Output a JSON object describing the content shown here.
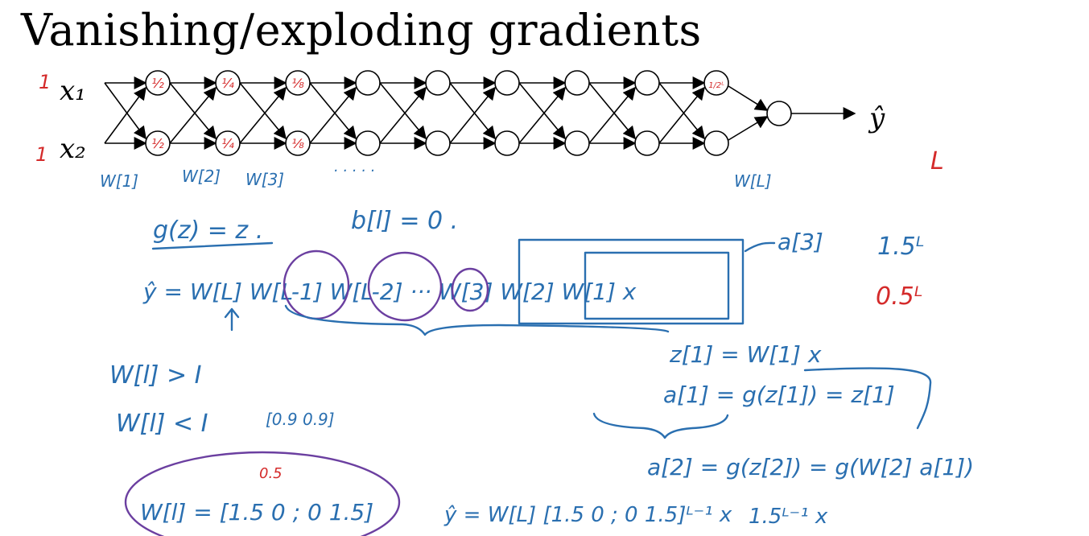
{
  "slide": {
    "title": "Vanishing/exploding gradients"
  },
  "network": {
    "inputs": [
      "x₁",
      "x₂"
    ],
    "output": "ŷ",
    "input_annotations": [
      "1",
      "1"
    ],
    "node_annotations_top": [
      "½",
      "¼",
      "⅛",
      "",
      "",
      "",
      "",
      "",
      "1/2ᴸ"
    ],
    "node_annotations_bottom": [
      "½",
      "¼",
      "⅛",
      "",
      "",
      "",
      "",
      "",
      ""
    ],
    "weight_labels": [
      "W[1]",
      "W[2]",
      "W[3]",
      "· · · · ·",
      "W[L]"
    ],
    "depth_label": "L"
  },
  "notes": {
    "g_def": "g(z) = z .",
    "b_def": "b[l] = 0 .",
    "yhat_product": "ŷ = W[L] W[L-1] W[L-2] ··· W[3] W[2] W[1] x",
    "a3": "a[3]",
    "z1": "z[1] = W[1] x",
    "a1": "a[1] = g(z[1]) = z[1]",
    "a2": "a[2] = g(z[2]) = g(W[2] a[1])",
    "w_gt_I": "W[l] > I",
    "w_lt_I": "W[l] < I",
    "small_matrix": "[0.9 0.9]",
    "growth": "1.5ᴸ",
    "decay": "0.5ᴸ",
    "w_matrix": "W[l] = [1.5 0 ; 0 1.5]",
    "matrix_red": "0.5",
    "yhat_power": "ŷ = W[L] [1.5 0 ; 0 1.5]ᴸ⁻¹ x",
    "result": "1.5ᴸ⁻¹ x"
  }
}
